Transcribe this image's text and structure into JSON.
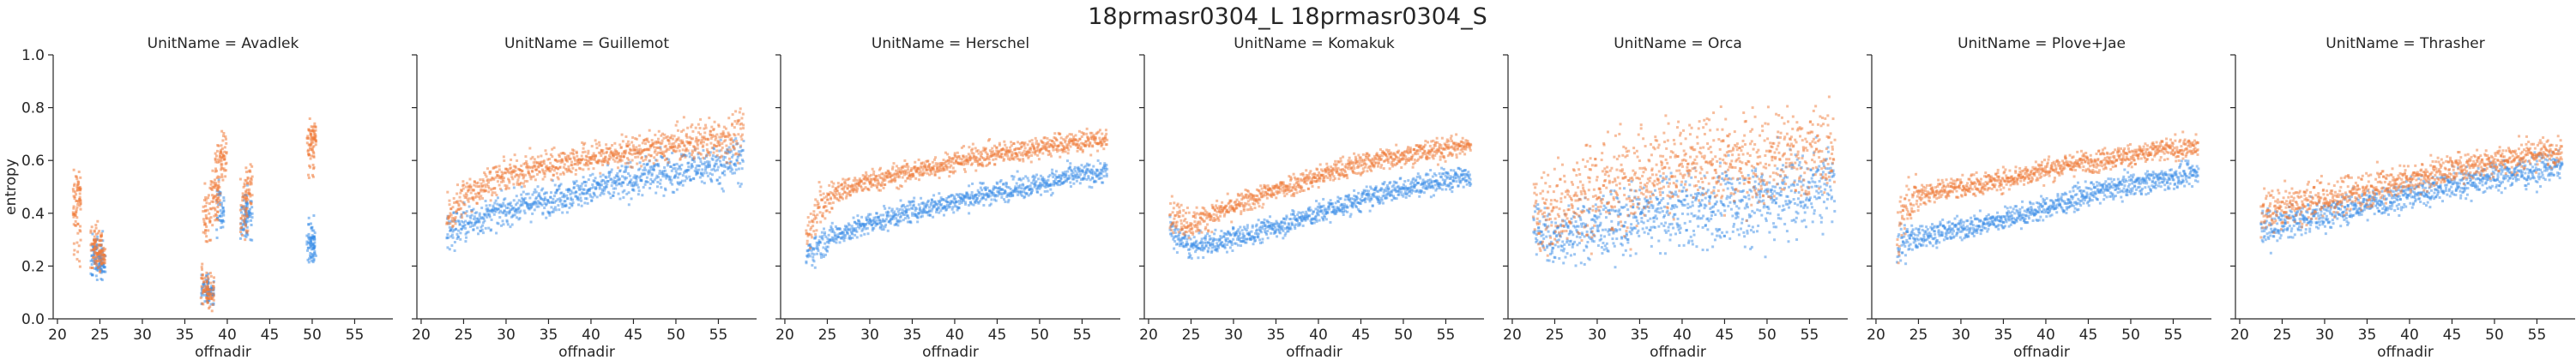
{
  "chart_data": {
    "type": "scatter",
    "title": "18prmasr0304_L 18prmasr0304_S",
    "xlabel": "offnadir",
    "ylabel": "entropy",
    "xlim": [
      19.5,
      59.5
    ],
    "ylim": [
      0,
      1
    ],
    "xticks": [
      "20",
      "25",
      "30",
      "35",
      "40",
      "45",
      "50",
      "55"
    ],
    "yticks": [
      "0.0",
      "0.2",
      "0.4",
      "0.6",
      "0.8",
      "1.0"
    ],
    "grid": false,
    "sharey": true,
    "colors": {
      "series_L": "#f07c3a",
      "series_S": "#3b8ee8"
    },
    "panels": [
      {
        "title": "UnitName = Avadlek",
        "orange": [
          {
            "x": 22.3,
            "y": 0.36,
            "s": 0.08
          },
          {
            "x": 22.3,
            "y": 0.48,
            "s": 0.04
          },
          {
            "x": 24.3,
            "y": 0.25,
            "s": 0.04
          },
          {
            "x": 24.8,
            "y": 0.27,
            "s": 0.04
          },
          {
            "x": 25.2,
            "y": 0.24,
            "s": 0.03
          },
          {
            "x": 37.3,
            "y": 0.13,
            "s": 0.04
          },
          {
            "x": 37.6,
            "y": 0.38,
            "s": 0.06
          },
          {
            "x": 38.0,
            "y": 0.1,
            "s": 0.03
          },
          {
            "x": 38.5,
            "y": 0.45,
            "s": 0.05
          },
          {
            "x": 39.0,
            "y": 0.55,
            "s": 0.06
          },
          {
            "x": 39.5,
            "y": 0.62,
            "s": 0.04
          },
          {
            "x": 42.0,
            "y": 0.42,
            "s": 0.06
          },
          {
            "x": 42.5,
            "y": 0.5,
            "s": 0.05
          },
          {
            "x": 49.8,
            "y": 0.64,
            "s": 0.06
          },
          {
            "x": 50.0,
            "y": 0.7,
            "s": 0.03
          }
        ],
        "blue": [
          {
            "x": 24.3,
            "y": 0.23,
            "s": 0.04
          },
          {
            "x": 24.9,
            "y": 0.24,
            "s": 0.04
          },
          {
            "x": 25.2,
            "y": 0.21,
            "s": 0.03
          },
          {
            "x": 37.4,
            "y": 0.12,
            "s": 0.03
          },
          {
            "x": 38.0,
            "y": 0.1,
            "s": 0.02
          },
          {
            "x": 39.2,
            "y": 0.42,
            "s": 0.05
          },
          {
            "x": 42.0,
            "y": 0.38,
            "s": 0.05
          },
          {
            "x": 42.5,
            "y": 0.4,
            "s": 0.04
          },
          {
            "x": 49.8,
            "y": 0.3,
            "s": 0.05
          },
          {
            "x": 50.0,
            "y": 0.28,
            "s": 0.03
          }
        ]
      },
      {
        "title": "UnitName = Guillemot",
        "orange": [
          {
            "x": 23,
            "y": 0.38,
            "s": 0.06
          },
          {
            "x": 25,
            "y": 0.46,
            "s": 0.05
          },
          {
            "x": 28,
            "y": 0.52,
            "s": 0.04
          },
          {
            "x": 32,
            "y": 0.56,
            "s": 0.04
          },
          {
            "x": 36,
            "y": 0.59,
            "s": 0.04
          },
          {
            "x": 40,
            "y": 0.61,
            "s": 0.04
          },
          {
            "x": 44,
            "y": 0.63,
            "s": 0.04
          },
          {
            "x": 48,
            "y": 0.65,
            "s": 0.04
          },
          {
            "x": 52,
            "y": 0.67,
            "s": 0.05
          },
          {
            "x": 56,
            "y": 0.69,
            "s": 0.06
          },
          {
            "x": 58,
            "y": 0.7,
            "s": 0.07
          }
        ],
        "blue": [
          {
            "x": 23,
            "y": 0.32,
            "s": 0.06
          },
          {
            "x": 25,
            "y": 0.36,
            "s": 0.05
          },
          {
            "x": 28,
            "y": 0.39,
            "s": 0.04
          },
          {
            "x": 32,
            "y": 0.43,
            "s": 0.04
          },
          {
            "x": 36,
            "y": 0.46,
            "s": 0.04
          },
          {
            "x": 40,
            "y": 0.49,
            "s": 0.04
          },
          {
            "x": 44,
            "y": 0.52,
            "s": 0.05
          },
          {
            "x": 48,
            "y": 0.55,
            "s": 0.05
          },
          {
            "x": 52,
            "y": 0.57,
            "s": 0.05
          },
          {
            "x": 56,
            "y": 0.59,
            "s": 0.06
          },
          {
            "x": 58,
            "y": 0.61,
            "s": 0.07
          }
        ]
      },
      {
        "title": "UnitName = Herschel",
        "orange": [
          {
            "x": 22.5,
            "y": 0.3,
            "s": 0.05
          },
          {
            "x": 24,
            "y": 0.42,
            "s": 0.06
          },
          {
            "x": 26,
            "y": 0.48,
            "s": 0.03
          },
          {
            "x": 30,
            "y": 0.52,
            "s": 0.03
          },
          {
            "x": 34,
            "y": 0.55,
            "s": 0.03
          },
          {
            "x": 38,
            "y": 0.58,
            "s": 0.03
          },
          {
            "x": 42,
            "y": 0.61,
            "s": 0.03
          },
          {
            "x": 46,
            "y": 0.63,
            "s": 0.03
          },
          {
            "x": 50,
            "y": 0.65,
            "s": 0.03
          },
          {
            "x": 54,
            "y": 0.67,
            "s": 0.03
          },
          {
            "x": 58,
            "y": 0.68,
            "s": 0.03
          }
        ],
        "blue": [
          {
            "x": 22.5,
            "y": 0.24,
            "s": 0.04
          },
          {
            "x": 24,
            "y": 0.28,
            "s": 0.04
          },
          {
            "x": 26,
            "y": 0.32,
            "s": 0.03
          },
          {
            "x": 30,
            "y": 0.36,
            "s": 0.03
          },
          {
            "x": 34,
            "y": 0.4,
            "s": 0.03
          },
          {
            "x": 38,
            "y": 0.43,
            "s": 0.03
          },
          {
            "x": 42,
            "y": 0.46,
            "s": 0.03
          },
          {
            "x": 46,
            "y": 0.49,
            "s": 0.03
          },
          {
            "x": 50,
            "y": 0.51,
            "s": 0.03
          },
          {
            "x": 54,
            "y": 0.54,
            "s": 0.03
          },
          {
            "x": 58,
            "y": 0.56,
            "s": 0.03
          }
        ]
      },
      {
        "title": "UnitName = Komakuk",
        "orange": [
          {
            "x": 22.5,
            "y": 0.4,
            "s": 0.05
          },
          {
            "x": 25,
            "y": 0.36,
            "s": 0.04
          },
          {
            "x": 28,
            "y": 0.4,
            "s": 0.03
          },
          {
            "x": 32,
            "y": 0.45,
            "s": 0.03
          },
          {
            "x": 36,
            "y": 0.5,
            "s": 0.03
          },
          {
            "x": 40,
            "y": 0.54,
            "s": 0.03
          },
          {
            "x": 44,
            "y": 0.58,
            "s": 0.03
          },
          {
            "x": 48,
            "y": 0.61,
            "s": 0.03
          },
          {
            "x": 52,
            "y": 0.63,
            "s": 0.03
          },
          {
            "x": 56,
            "y": 0.65,
            "s": 0.03
          },
          {
            "x": 58,
            "y": 0.66,
            "s": 0.02
          }
        ],
        "blue": [
          {
            "x": 22.5,
            "y": 0.33,
            "s": 0.04
          },
          {
            "x": 25,
            "y": 0.27,
            "s": 0.03
          },
          {
            "x": 28,
            "y": 0.29,
            "s": 0.03
          },
          {
            "x": 32,
            "y": 0.32,
            "s": 0.03
          },
          {
            "x": 36,
            "y": 0.36,
            "s": 0.03
          },
          {
            "x": 40,
            "y": 0.4,
            "s": 0.03
          },
          {
            "x": 44,
            "y": 0.44,
            "s": 0.03
          },
          {
            "x": 48,
            "y": 0.48,
            "s": 0.03
          },
          {
            "x": 52,
            "y": 0.51,
            "s": 0.03
          },
          {
            "x": 56,
            "y": 0.53,
            "s": 0.03
          },
          {
            "x": 58,
            "y": 0.54,
            "s": 0.02
          }
        ]
      },
      {
        "title": "UnitName = Orca",
        "orange": [
          {
            "x": 22.5,
            "y": 0.4,
            "s": 0.1
          },
          {
            "x": 25,
            "y": 0.42,
            "s": 0.12
          },
          {
            "x": 28,
            "y": 0.46,
            "s": 0.14
          },
          {
            "x": 32,
            "y": 0.52,
            "s": 0.14
          },
          {
            "x": 36,
            "y": 0.56,
            "s": 0.12
          },
          {
            "x": 40,
            "y": 0.58,
            "s": 0.12
          },
          {
            "x": 44,
            "y": 0.59,
            "s": 0.12
          },
          {
            "x": 48,
            "y": 0.6,
            "s": 0.12
          },
          {
            "x": 52,
            "y": 0.62,
            "s": 0.12
          },
          {
            "x": 56,
            "y": 0.63,
            "s": 0.12
          },
          {
            "x": 58,
            "y": 0.64,
            "s": 0.1
          }
        ],
        "blue": [
          {
            "x": 22.5,
            "y": 0.35,
            "s": 0.08
          },
          {
            "x": 25,
            "y": 0.3,
            "s": 0.07
          },
          {
            "x": 28,
            "y": 0.33,
            "s": 0.08
          },
          {
            "x": 32,
            "y": 0.36,
            "s": 0.09
          },
          {
            "x": 36,
            "y": 0.39,
            "s": 0.09
          },
          {
            "x": 40,
            "y": 0.41,
            "s": 0.1
          },
          {
            "x": 44,
            "y": 0.42,
            "s": 0.1
          },
          {
            "x": 48,
            "y": 0.44,
            "s": 0.11
          },
          {
            "x": 52,
            "y": 0.47,
            "s": 0.12
          },
          {
            "x": 56,
            "y": 0.5,
            "s": 0.12
          },
          {
            "x": 58,
            "y": 0.52,
            "s": 0.1
          }
        ]
      },
      {
        "title": "UnitName = Plove+Jae",
        "orange": [
          {
            "x": 22.5,
            "y": 0.35,
            "s": 0.1
          },
          {
            "x": 24,
            "y": 0.45,
            "s": 0.06
          },
          {
            "x": 26,
            "y": 0.48,
            "s": 0.03
          },
          {
            "x": 30,
            "y": 0.5,
            "s": 0.03
          },
          {
            "x": 34,
            "y": 0.52,
            "s": 0.03
          },
          {
            "x": 38,
            "y": 0.55,
            "s": 0.03
          },
          {
            "x": 42,
            "y": 0.58,
            "s": 0.03
          },
          {
            "x": 46,
            "y": 0.6,
            "s": 0.03
          },
          {
            "x": 50,
            "y": 0.62,
            "s": 0.03
          },
          {
            "x": 54,
            "y": 0.64,
            "s": 0.03
          },
          {
            "x": 58,
            "y": 0.65,
            "s": 0.03
          }
        ],
        "blue": [
          {
            "x": 22.5,
            "y": 0.28,
            "s": 0.08
          },
          {
            "x": 24,
            "y": 0.3,
            "s": 0.04
          },
          {
            "x": 26,
            "y": 0.32,
            "s": 0.03
          },
          {
            "x": 30,
            "y": 0.34,
            "s": 0.03
          },
          {
            "x": 34,
            "y": 0.37,
            "s": 0.03
          },
          {
            "x": 38,
            "y": 0.4,
            "s": 0.03
          },
          {
            "x": 42,
            "y": 0.44,
            "s": 0.03
          },
          {
            "x": 46,
            "y": 0.48,
            "s": 0.03
          },
          {
            "x": 50,
            "y": 0.51,
            "s": 0.03
          },
          {
            "x": 54,
            "y": 0.53,
            "s": 0.03
          },
          {
            "x": 58,
            "y": 0.55,
            "s": 0.03
          }
        ]
      },
      {
        "title": "UnitName = Thrasher",
        "orange": [
          {
            "x": 22.5,
            "y": 0.4,
            "s": 0.06
          },
          {
            "x": 25,
            "y": 0.42,
            "s": 0.05
          },
          {
            "x": 28,
            "y": 0.44,
            "s": 0.05
          },
          {
            "x": 32,
            "y": 0.47,
            "s": 0.05
          },
          {
            "x": 36,
            "y": 0.5,
            "s": 0.05
          },
          {
            "x": 40,
            "y": 0.53,
            "s": 0.04
          },
          {
            "x": 44,
            "y": 0.56,
            "s": 0.04
          },
          {
            "x": 48,
            "y": 0.59,
            "s": 0.04
          },
          {
            "x": 52,
            "y": 0.61,
            "s": 0.04
          },
          {
            "x": 56,
            "y": 0.63,
            "s": 0.04
          },
          {
            "x": 58,
            "y": 0.64,
            "s": 0.03
          }
        ],
        "blue": [
          {
            "x": 22.5,
            "y": 0.34,
            "s": 0.05
          },
          {
            "x": 25,
            "y": 0.36,
            "s": 0.04
          },
          {
            "x": 28,
            "y": 0.38,
            "s": 0.04
          },
          {
            "x": 32,
            "y": 0.41,
            "s": 0.04
          },
          {
            "x": 36,
            "y": 0.44,
            "s": 0.04
          },
          {
            "x": 40,
            "y": 0.47,
            "s": 0.04
          },
          {
            "x": 44,
            "y": 0.5,
            "s": 0.04
          },
          {
            "x": 48,
            "y": 0.53,
            "s": 0.04
          },
          {
            "x": 52,
            "y": 0.55,
            "s": 0.04
          },
          {
            "x": 56,
            "y": 0.57,
            "s": 0.04
          },
          {
            "x": 58,
            "y": 0.58,
            "s": 0.03
          }
        ]
      }
    ]
  }
}
